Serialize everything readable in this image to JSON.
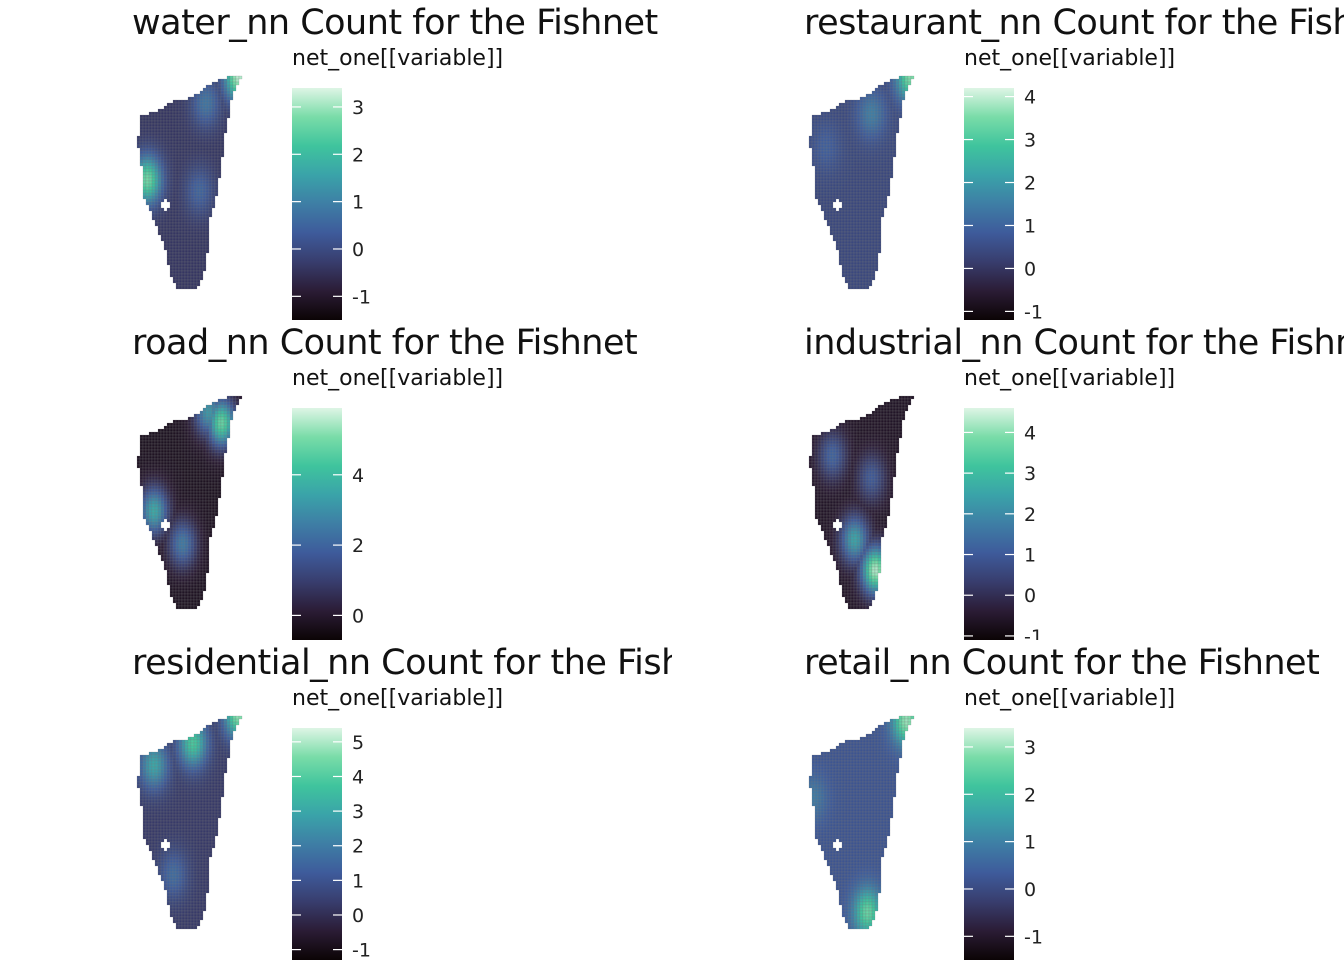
{
  "palette": [
    "#0b0405",
    "#2b1c35",
    "#383d6d",
    "#3e5b9b",
    "#3e7ea5",
    "#3aa3a9",
    "#3fc49d",
    "#79dca8",
    "#def5e5"
  ],
  "cell_grid_color": "#7a7a7a",
  "chart_data": [
    {
      "type": "heatmap",
      "title": "water_nn Count for the Fishnet",
      "legend_title": "net_one[[variable]]",
      "color_range": [
        -1.5,
        3.4
      ],
      "ticks": [
        -1,
        0,
        1,
        2,
        3
      ],
      "tick_labels": [
        "-1",
        "0",
        "1",
        "2",
        "3"
      ],
      "hotspots": [
        {
          "x": 0.15,
          "y": 0.5,
          "value": 2.7
        },
        {
          "x": 0.85,
          "y": 0.03,
          "value": 3.2
        },
        {
          "x": 0.6,
          "y": 0.15,
          "value": 0.8
        },
        {
          "x": 0.55,
          "y": 0.55,
          "value": 0.5
        }
      ],
      "base_value": -0.4
    },
    {
      "type": "heatmap",
      "title": "restaurant_nn Count for the Fishnet",
      "legend_title": "net_one[[variable]]",
      "color_range": [
        -1.2,
        4.2
      ],
      "ticks": [
        -1,
        0,
        1,
        2,
        3,
        4
      ],
      "tick_labels": [
        "-1",
        "0",
        "1",
        "2",
        "3",
        "4"
      ],
      "hotspots": [
        {
          "x": 0.85,
          "y": 0.03,
          "value": 3.6
        },
        {
          "x": 0.55,
          "y": 0.2,
          "value": 1.5
        },
        {
          "x": 0.2,
          "y": 0.35,
          "value": 0.9
        }
      ],
      "base_value": 0.4
    },
    {
      "type": "heatmap",
      "title": "road_nn Count for the Fishnet",
      "legend_title": "net_one[[variable]]",
      "color_range": [
        -0.7,
        5.9
      ],
      "ticks": [
        0,
        2,
        4
      ],
      "tick_labels": [
        "0",
        "2",
        "4"
      ],
      "hotspots": [
        {
          "x": 0.72,
          "y": 0.15,
          "value": 4.8
        },
        {
          "x": 0.62,
          "y": 0.1,
          "value": 3.2
        },
        {
          "x": 0.2,
          "y": 0.55,
          "value": 3.6
        },
        {
          "x": 0.42,
          "y": 0.7,
          "value": 2.5
        }
      ],
      "base_value": -0.2
    },
    {
      "type": "heatmap",
      "title": "industrial_nn Count for the Fishnet",
      "legend_title": "net_one[[variable]]",
      "color_range": [
        -1.1,
        4.6
      ],
      "ticks": [
        -1,
        0,
        1,
        2,
        3,
        4
      ],
      "tick_labels": [
        "-1",
        "0",
        "1",
        "2",
        "3",
        "4"
      ],
      "hotspots": [
        {
          "x": 0.58,
          "y": 0.82,
          "value": 4.3
        },
        {
          "x": 0.42,
          "y": 0.68,
          "value": 2.5
        },
        {
          "x": 0.25,
          "y": 0.3,
          "value": 1.2
        },
        {
          "x": 0.55,
          "y": 0.4,
          "value": 1.0
        }
      ],
      "base_value": -0.6
    },
    {
      "type": "heatmap",
      "title": "residential_nn Count for the Fishnet",
      "legend_title": "net_one[[variable]]",
      "color_range": [
        -1.3,
        5.4
      ],
      "ticks": [
        -1,
        0,
        1,
        2,
        3,
        4,
        5
      ],
      "tick_labels": [
        "-1",
        "0",
        "1",
        "2",
        "3",
        "4",
        "5"
      ],
      "hotspots": [
        {
          "x": 0.5,
          "y": 0.15,
          "value": 3.9
        },
        {
          "x": 0.85,
          "y": 0.02,
          "value": 4.8
        },
        {
          "x": 0.2,
          "y": 0.25,
          "value": 3.0
        },
        {
          "x": 0.35,
          "y": 0.75,
          "value": 1.6
        }
      ],
      "base_value": 0.3
    },
    {
      "type": "heatmap",
      "title": "retail_nn Count for the Fishnet",
      "legend_title": "net_one[[variable]]",
      "color_range": [
        -1.5,
        3.4
      ],
      "ticks": [
        -1,
        0,
        1,
        2,
        3
      ],
      "tick_labels": [
        "-1",
        "0",
        "1",
        "2",
        "3"
      ],
      "hotspots": [
        {
          "x": 0.82,
          "y": 0.05,
          "value": 3.0
        },
        {
          "x": 0.52,
          "y": 0.92,
          "value": 2.6
        },
        {
          "x": 0.1,
          "y": 0.4,
          "value": 0.9
        }
      ],
      "base_value": 0.2
    }
  ]
}
